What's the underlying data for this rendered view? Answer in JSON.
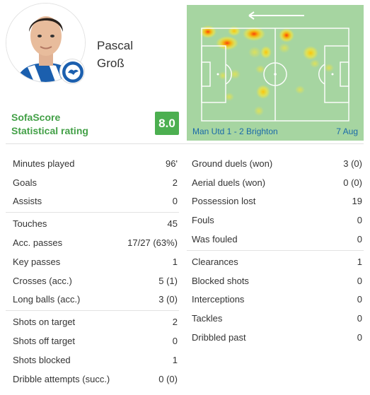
{
  "player": {
    "first_name": "Pascal",
    "last_name": "Groß"
  },
  "rating": {
    "line1": "SofaScore",
    "line2": "Statistical rating",
    "value": "8.0",
    "color": "#4caf50"
  },
  "heatmap": {
    "match": "Man Utd 1 - 2 Brighton",
    "date": "7 Aug",
    "direction_icon": "arrow-left-icon"
  },
  "left_groups": [
    [
      {
        "label": "Minutes played",
        "value": "96'"
      },
      {
        "label": "Goals",
        "value": "2"
      },
      {
        "label": "Assists",
        "value": "0"
      }
    ],
    [
      {
        "label": "Touches",
        "value": "45"
      },
      {
        "label": "Acc. passes",
        "value": "17/27 (63%)"
      },
      {
        "label": "Key passes",
        "value": "1"
      },
      {
        "label": "Crosses (acc.)",
        "value": "5 (1)"
      },
      {
        "label": "Long balls (acc.)",
        "value": "3 (0)"
      }
    ],
    [
      {
        "label": "Shots on target",
        "value": "2"
      },
      {
        "label": "Shots off target",
        "value": "0"
      },
      {
        "label": "Shots blocked",
        "value": "1"
      },
      {
        "label": "Dribble attempts (succ.)",
        "value": "0 (0)"
      }
    ]
  ],
  "right_groups": [
    [
      {
        "label": "Ground duels (won)",
        "value": "3 (0)"
      },
      {
        "label": "Aerial duels (won)",
        "value": "0 (0)"
      },
      {
        "label": "Possession lost",
        "value": "19"
      },
      {
        "label": "Fouls",
        "value": "0"
      },
      {
        "label": "Was fouled",
        "value": "0"
      }
    ],
    [
      {
        "label": "Clearances",
        "value": "1"
      },
      {
        "label": "Blocked shots",
        "value": "0"
      },
      {
        "label": "Interceptions",
        "value": "0"
      },
      {
        "label": "Tackles",
        "value": "0"
      },
      {
        "label": "Dribbled past",
        "value": "0"
      }
    ]
  ]
}
